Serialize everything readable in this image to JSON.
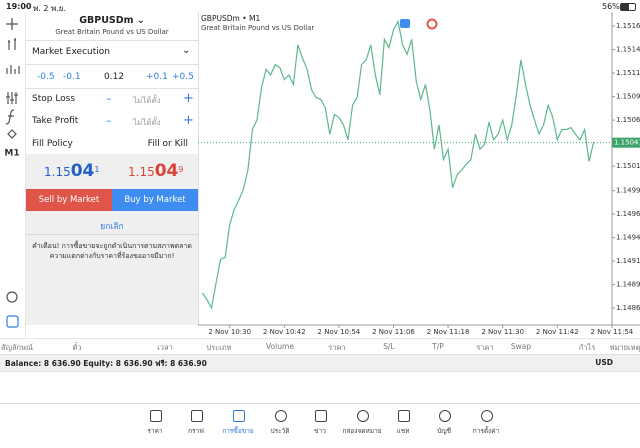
{
  "status_bar": {
    "time": "19:00",
    "date": "พ. 2 พ.ย.",
    "battery": "56%"
  },
  "toolbar": {
    "timeframe": "M1"
  },
  "order": {
    "symbol": "GBPUSDm",
    "description": "Great Britain Pound vs US Dollar",
    "execution": "Market Execution",
    "volume_steps": [
      "-0.5",
      "-0.1",
      "+0.1",
      "+0.5"
    ],
    "volume": "0.12",
    "stop_loss": {
      "label": "Stop Loss",
      "value": "ไม่ได้ตั้ง"
    },
    "take_profit": {
      "label": "Take Profit",
      "value": "ไม่ได้ตั้ง"
    },
    "fill_policy": {
      "label": "Fill Policy",
      "value": "Fill or Kill"
    },
    "bid": {
      "main": "1.15",
      "big": "04",
      "small": "1"
    },
    "ask": {
      "main": "1.15",
      "big": "04",
      "small": "9"
    },
    "sell": "Sell by Market",
    "buy": "Buy by Market",
    "cancel": "ยกเลิก",
    "warning": "คำเตือน! การซื้อขายจะถูกดำเนินการตามสภาพตลาด ความแตกต่างกับราคาที่ร้องขออาจมีมาก!"
  },
  "chart_data": {
    "type": "line",
    "title": "GBPUSDm • M1",
    "subtitle": "Great Britain Pound vs US Dollar",
    "categories": [
      null,
      null,
      null,
      null,
      null,
      null,
      "2 Nov 10:30",
      null,
      null,
      null,
      null,
      null,
      null,
      null,
      null,
      null,
      null,
      null,
      "2 Nov 10:42",
      null,
      null,
      null,
      null,
      null,
      null,
      null,
      null,
      null,
      null,
      null,
      "2 Nov 10:54",
      null,
      null,
      null,
      null,
      null,
      null,
      null,
      null,
      null,
      null,
      null,
      "2 Nov 11:06",
      null,
      null,
      null,
      null,
      null,
      null,
      null,
      null,
      null,
      null,
      null,
      "2 Nov 11:18",
      null,
      null,
      null,
      null,
      null,
      null,
      null,
      null,
      null,
      null,
      null,
      "2 Nov 11:30",
      null,
      null,
      null,
      null,
      null,
      null,
      null,
      null,
      null,
      null,
      null,
      "2 Nov 11:42",
      null,
      null,
      null,
      null,
      null,
      null,
      null,
      null,
      null,
      null,
      null,
      "2 Nov 11:54"
    ],
    "series": [
      {
        "color": "#5cb88a",
        "values": [
          1.14881,
          1.14874,
          1.14865,
          1.14892,
          1.14917,
          1.14919,
          1.14954,
          1.1497,
          1.1498,
          1.14991,
          1.15012,
          1.15055,
          1.15065,
          1.151,
          1.15119,
          1.15113,
          1.15124,
          1.15121,
          1.15108,
          1.15113,
          1.15103,
          1.15145,
          1.15131,
          1.15119,
          1.15097,
          1.15089,
          1.15087,
          1.15078,
          1.1505,
          1.15071,
          1.15068,
          1.1506,
          1.15044,
          1.15081,
          1.15089,
          1.15124,
          1.15129,
          1.15145,
          1.15113,
          1.15092,
          1.15151,
          1.15142,
          1.15161,
          1.1517,
          1.15145,
          1.15135,
          1.15151,
          1.15106,
          1.15087,
          1.15103,
          1.15076,
          1.15034,
          1.1506,
          1.15023,
          1.15034,
          1.14993,
          1.15007,
          1.15012,
          1.15018,
          1.15023,
          1.1505,
          1.15034,
          1.15039,
          1.15063,
          1.15044,
          1.1505,
          1.15065,
          1.15044,
          1.1506,
          1.15092,
          1.15129,
          1.15103,
          1.15081,
          1.15065,
          1.1505,
          1.1506,
          1.15081,
          1.15068,
          1.15044,
          1.15055,
          1.15055,
          1.15057,
          1.1505,
          1.15044,
          1.15055,
          1.15021,
          1.15042,
          null,
          null,
          null,
          null
        ]
      }
    ],
    "ylim": [
      1.14847,
      1.1518
    ],
    "yticks": [
      1.15165,
      {
        "value": 1.1514,
        "label": "1.15140"
      },
      1.15115,
      {
        "value": 1.1509,
        "label": "1.15090"
      },
      1.15065,
      1.15016,
      {
        "value": 1.1499,
        "label": "1.14990"
      },
      1.14965,
      {
        "value": 1.1494,
        "label": "1.14940"
      },
      1.14915,
      {
        "value": 1.1489,
        "label": "1.14890"
      },
      1.14865
    ],
    "current_price": 1.15041,
    "current_color": "#3aa36a"
  },
  "table": {
    "columns": [
      "สัญลักษณ์",
      "ตั๋ว",
      "เวลา",
      "ประเภท",
      "Volume",
      "ราคา",
      "S/L",
      "T/P",
      "ราคา",
      "Swap",
      "กำไร",
      "หมายเหตุ"
    ]
  },
  "balance": {
    "text": "Balance: 8 636.90 Equity: 8 636.90 ฟรี: 8 636.90",
    "currency": "USD"
  },
  "tabs": [
    "ราคา",
    "กราฟ",
    "การซื้อขาย",
    "ประวัติ",
    "ข่าว",
    "กล่องจดหมาย",
    "แชท",
    "บัญชี",
    "การตั้งค่า"
  ]
}
